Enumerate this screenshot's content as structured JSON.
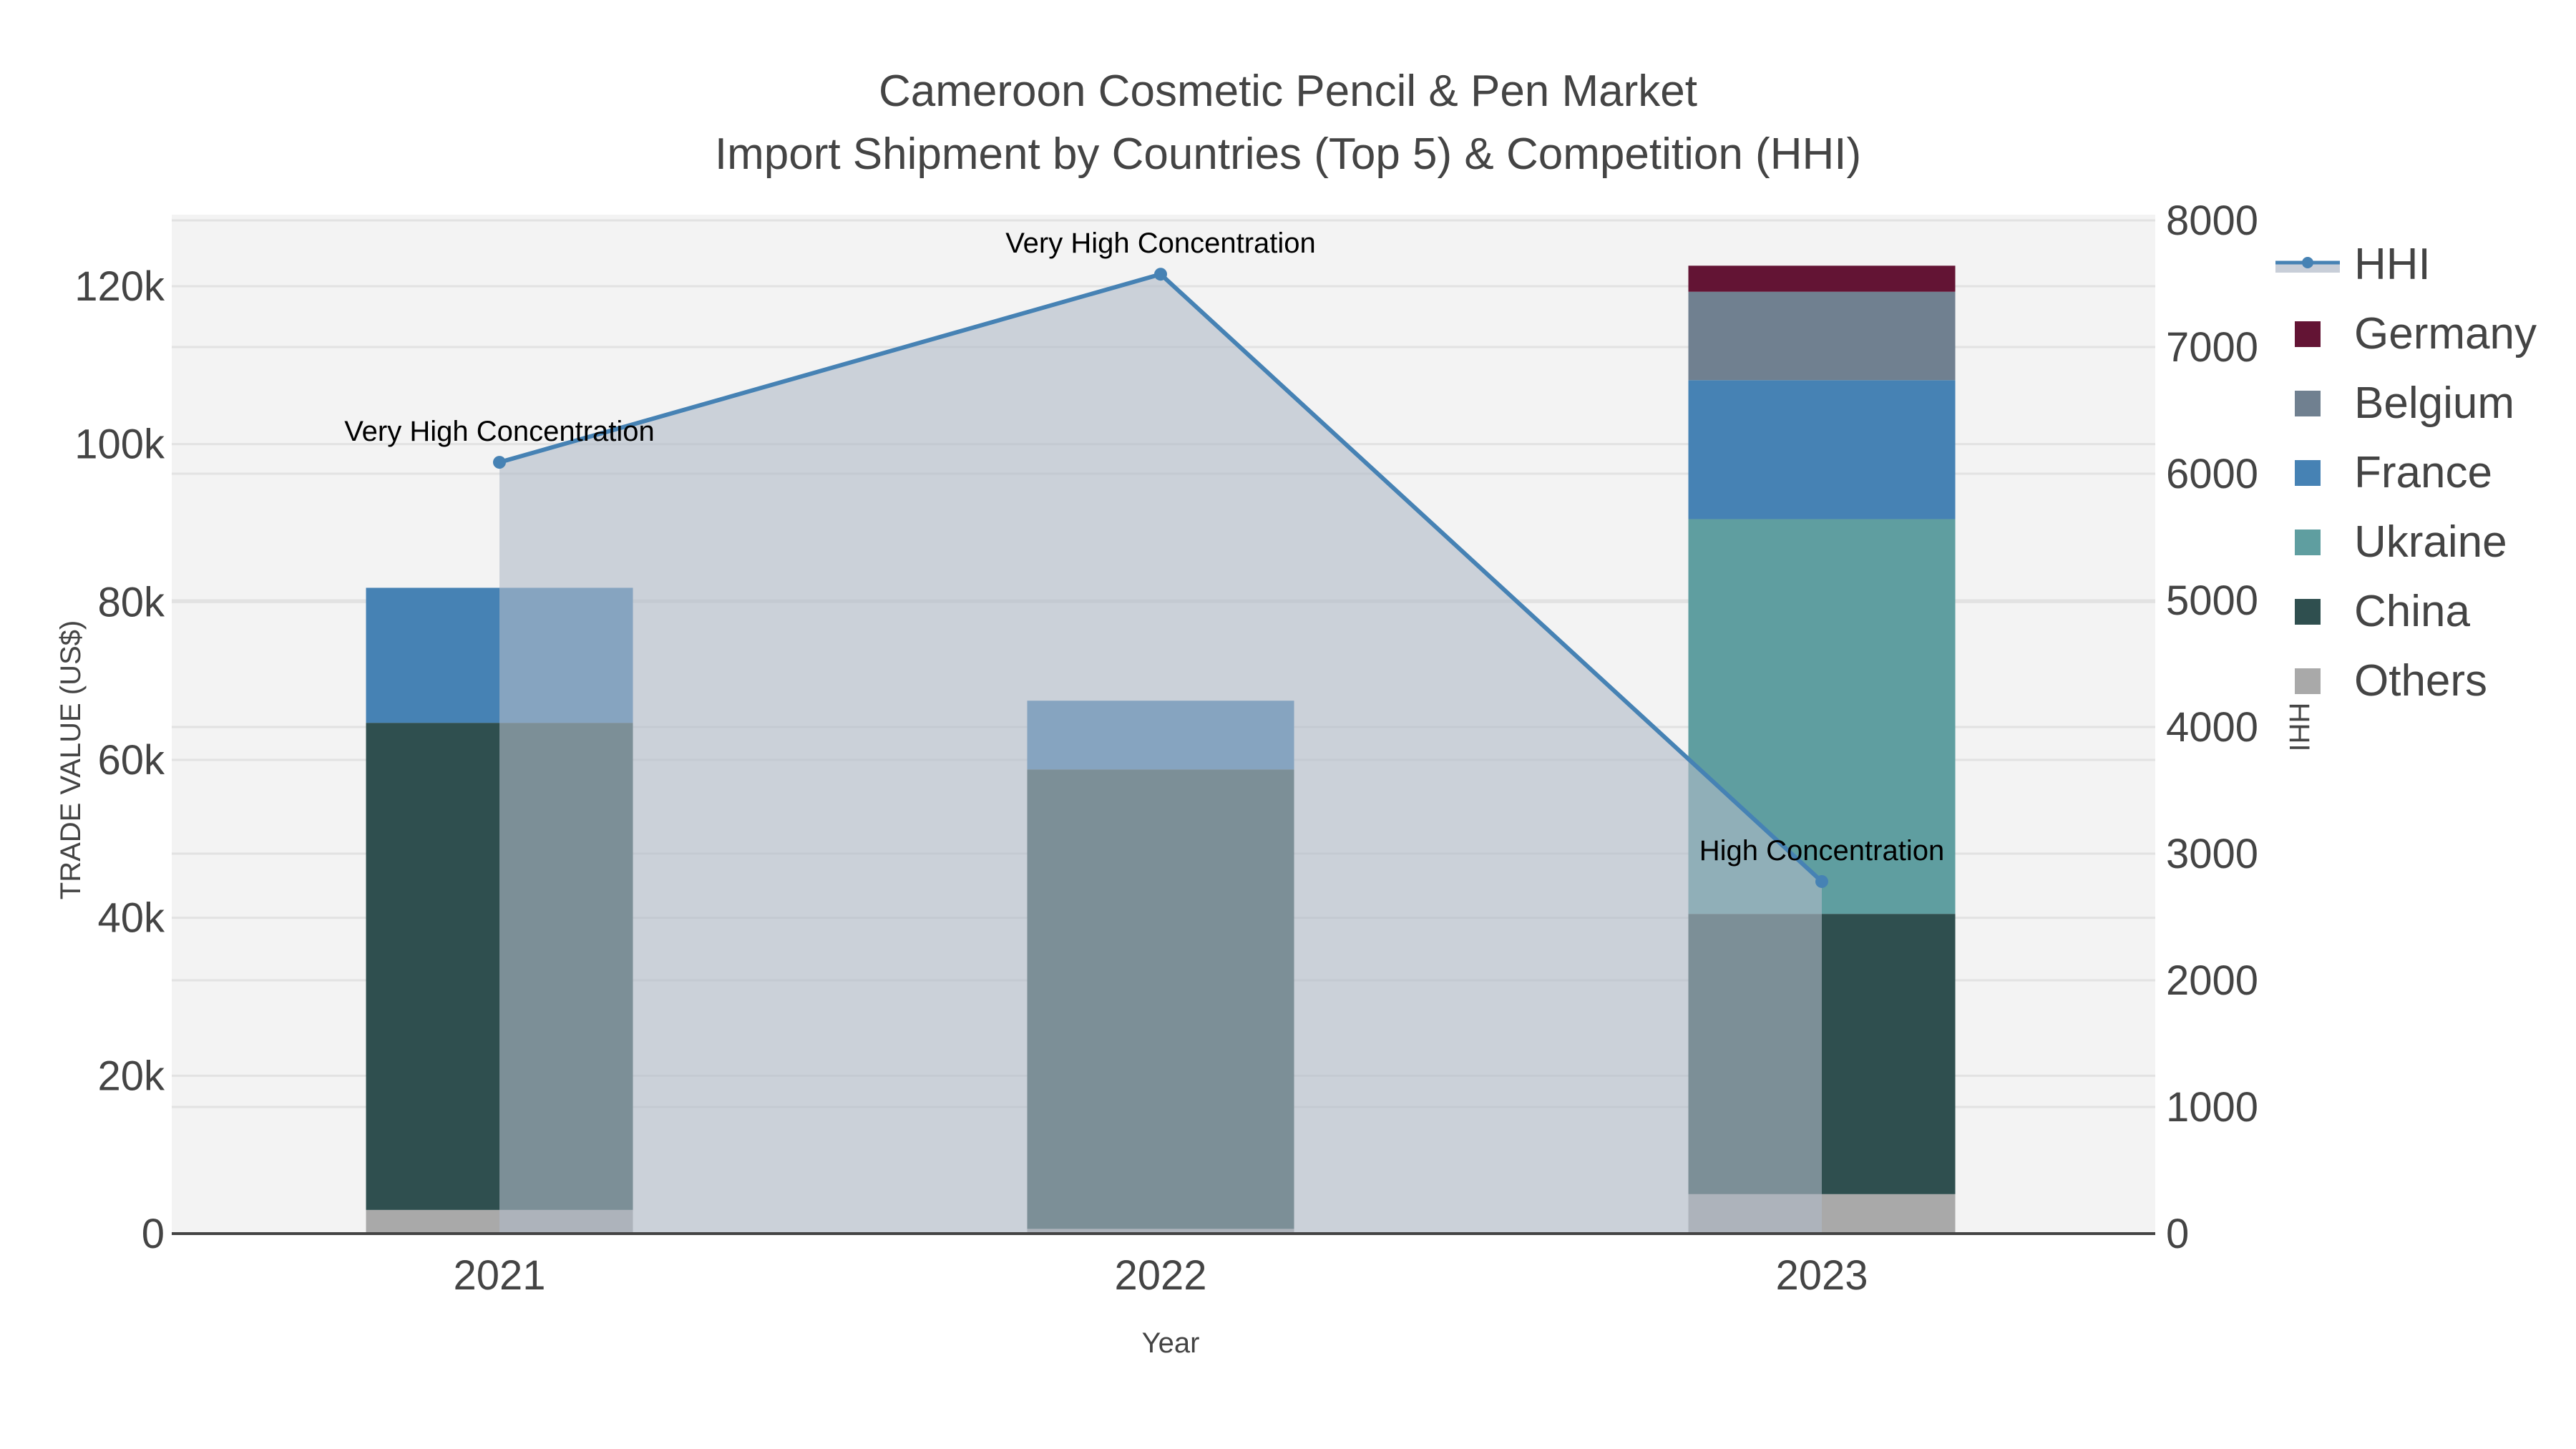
{
  "title": {
    "line1": "Cameroon Cosmetic Pencil & Pen Market",
    "line2": "Import Shipment by Countries (Top 5) & Competition (HHI)"
  },
  "axes": {
    "x_label": "Year",
    "y_left_label": "TRADE VALUE (US$)",
    "y_right_label": "HHI",
    "y_left_ticks": [
      "0",
      "20k",
      "40k",
      "60k",
      "80k",
      "100k",
      "120k"
    ],
    "y_right_ticks": [
      "0",
      "1000",
      "2000",
      "3000",
      "4000",
      "5000",
      "6000",
      "7000",
      "8000"
    ],
    "x_ticks": [
      "2021",
      "2022",
      "2023"
    ]
  },
  "legend": {
    "items": [
      {
        "label": "HHI",
        "color": "#4682b4",
        "type": "line"
      },
      {
        "label": "Germany",
        "color": "#631434",
        "type": "bar"
      },
      {
        "label": "Belgium",
        "color": "#708090",
        "type": "bar"
      },
      {
        "label": "France",
        "color": "#4682b4",
        "type": "bar"
      },
      {
        "label": "Ukraine",
        "color": "#5f9ea0",
        "type": "bar"
      },
      {
        "label": "China",
        "color": "#2f4f4f",
        "type": "bar"
      },
      {
        "label": "Others",
        "color": "#a9a9a9",
        "type": "bar"
      }
    ]
  },
  "annotations": [
    {
      "year": "2021",
      "text": "Very High Concentration"
    },
    {
      "year": "2022",
      "text": "Very High Concentration"
    },
    {
      "year": "2023",
      "text": "High Concentration"
    }
  ],
  "chart_data": {
    "type": "bar",
    "title": "Cameroon Cosmetic Pencil & Pen Market — Import Shipment by Countries (Top 5) & Competition (HHI)",
    "xlabel": "Year",
    "ylabel": "TRADE VALUE (US$)",
    "y2label": "HHI",
    "categories": [
      "2021",
      "2022",
      "2023"
    ],
    "stacked": true,
    "ylim": [
      0,
      129000
    ],
    "y2lim": [
      0,
      8100
    ],
    "series": [
      {
        "name": "Others",
        "color": "#a9a9a9",
        "values": [
          3000,
          600,
          5000
        ]
      },
      {
        "name": "China",
        "color": "#2f4f4f",
        "values": [
          61700,
          58200,
          35500
        ]
      },
      {
        "name": "Ukraine",
        "color": "#5f9ea0",
        "values": [
          0,
          0,
          50000
        ]
      },
      {
        "name": "France",
        "color": "#4682b4",
        "values": [
          17100,
          8700,
          17600
        ]
      },
      {
        "name": "Belgium",
        "color": "#708090",
        "values": [
          0,
          0,
          11200
        ]
      },
      {
        "name": "Germany",
        "color": "#631434",
        "values": [
          0,
          0,
          3300
        ]
      }
    ],
    "line_series": {
      "name": "HHI",
      "axis": "right",
      "color": "#4682b4",
      "fill": "tozeroy",
      "values": [
        6090,
        7575,
        2780
      ],
      "labels": [
        "Very High Concentration",
        "Very High Concentration",
        "High Concentration"
      ]
    },
    "grid": true,
    "legend_position": "right"
  }
}
